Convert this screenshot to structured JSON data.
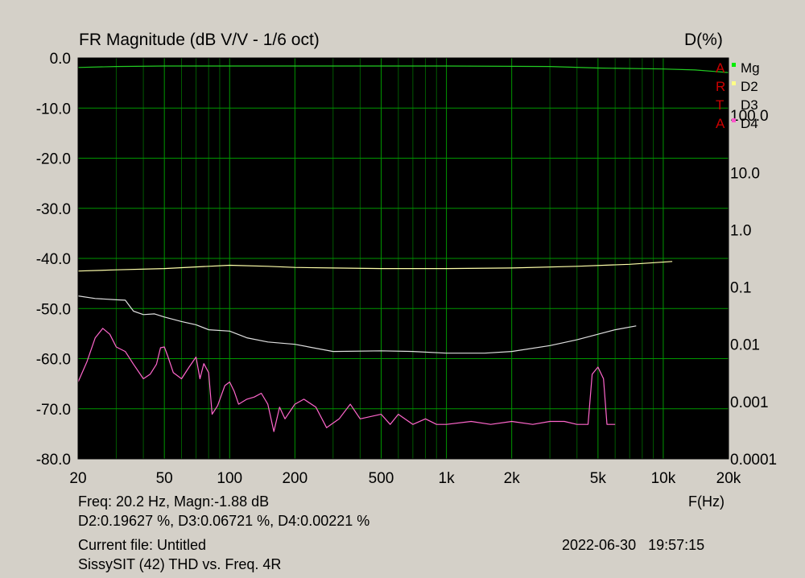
{
  "header": {
    "title": "FR Magnitude (dB V/V - 1/6 oct)",
    "right_axis_title": "D(%)"
  },
  "watermark": [
    "A",
    "R",
    "T",
    "A"
  ],
  "footer": {
    "readout_line1": "Freq: 20.2 Hz, Magn:-1.88 dB",
    "readout_line2": "D2:0.19627 %, D3:0.06721 %, D4:0.00221 %",
    "xaxis_unit": "F(Hz)",
    "current_file": "Current file: Untitled",
    "timestamp": "2022-06-30   19:57:15",
    "description": "SissySIT (42) THD vs. Freq. 4R"
  },
  "chart_data": {
    "type": "line",
    "x_scale": "log",
    "xlim": [
      20,
      20000
    ],
    "ylim_left": [
      -80,
      0
    ],
    "ylim_right_log": [
      0.0001,
      1000
    ],
    "grid": true,
    "legend_placement": "top-right",
    "x_ticks": [
      {
        "v": 20,
        "label": "20"
      },
      {
        "v": 50,
        "label": "50"
      },
      {
        "v": 100,
        "label": "100"
      },
      {
        "v": 200,
        "label": "200"
      },
      {
        "v": 500,
        "label": "500"
      },
      {
        "v": 1000,
        "label": "1k"
      },
      {
        "v": 2000,
        "label": "2k"
      },
      {
        "v": 5000,
        "label": "5k"
      },
      {
        "v": 10000,
        "label": "10k"
      },
      {
        "v": 20000,
        "label": "20k"
      }
    ],
    "y_ticks_left": [
      "0.0",
      "-10.0",
      "-20.0",
      "-30.0",
      "-40.0",
      "-50.0",
      "-60.0",
      "-70.0",
      "-80.0"
    ],
    "y_ticks_right": [
      {
        "v": 100,
        "label": "100.0"
      },
      {
        "v": 10,
        "label": "10.0"
      },
      {
        "v": 1,
        "label": "1.0"
      },
      {
        "v": 0.1,
        "label": "0.1"
      },
      {
        "v": 0.01,
        "label": "0.01"
      },
      {
        "v": 0.001,
        "label": "0.001"
      },
      {
        "v": 0.0001,
        "label": "0.0001"
      }
    ],
    "colors": {
      "plot_bg": "#000000",
      "grid_major": "#009600",
      "grid_minor": "#005a00",
      "Mg": "#22cc22",
      "D2": "#ffffaa",
      "D3": "#e0e0e0",
      "D4": "#ff66cc"
    },
    "series": [
      {
        "name": "Mg",
        "axis": "left",
        "color": "#22cc22",
        "legend_marker": "#00ee00",
        "points": [
          [
            20,
            -1.9
          ],
          [
            30,
            -1.7
          ],
          [
            50,
            -1.6
          ],
          [
            100,
            -1.6
          ],
          [
            500,
            -1.6
          ],
          [
            1000,
            -1.6
          ],
          [
            3000,
            -1.7
          ],
          [
            5000,
            -2.0
          ],
          [
            10000,
            -2.2
          ],
          [
            14000,
            -2.4
          ],
          [
            20000,
            -2.9
          ]
        ]
      },
      {
        "name": "D2",
        "axis": "right",
        "color": "#ffffaa",
        "legend_marker": "#ffff88",
        "points": [
          [
            20,
            0.19
          ],
          [
            30,
            0.2
          ],
          [
            50,
            0.21
          ],
          [
            80,
            0.23
          ],
          [
            100,
            0.24
          ],
          [
            150,
            0.23
          ],
          [
            200,
            0.22
          ],
          [
            300,
            0.215
          ],
          [
            500,
            0.21
          ],
          [
            1000,
            0.21
          ],
          [
            2000,
            0.215
          ],
          [
            4000,
            0.23
          ],
          [
            7000,
            0.25
          ],
          [
            11000,
            0.28
          ]
        ]
      },
      {
        "name": "D3",
        "axis": "right",
        "color": "#e0e0e0",
        "legend_marker": "",
        "points": [
          [
            20,
            0.07
          ],
          [
            24,
            0.063
          ],
          [
            30,
            0.06
          ],
          [
            33,
            0.059
          ],
          [
            36,
            0.038
          ],
          [
            40,
            0.033
          ],
          [
            45,
            0.034
          ],
          [
            50,
            0.03
          ],
          [
            60,
            0.025
          ],
          [
            70,
            0.022
          ],
          [
            80,
            0.018
          ],
          [
            100,
            0.017
          ],
          [
            120,
            0.013
          ],
          [
            150,
            0.011
          ],
          [
            200,
            0.01
          ],
          [
            300,
            0.0075
          ],
          [
            500,
            0.0077
          ],
          [
            700,
            0.0075
          ],
          [
            1000,
            0.007
          ],
          [
            1500,
            0.007
          ],
          [
            2000,
            0.0075
          ],
          [
            3000,
            0.0095
          ],
          [
            4000,
            0.012
          ],
          [
            5000,
            0.015
          ],
          [
            6000,
            0.018
          ],
          [
            7500,
            0.021
          ]
        ]
      },
      {
        "name": "D4",
        "axis": "right",
        "color": "#ff66cc",
        "legend_marker": "#ff55cc",
        "points": [
          [
            20,
            0.0022
          ],
          [
            22,
            0.005
          ],
          [
            24,
            0.013
          ],
          [
            26,
            0.019
          ],
          [
            28,
            0.015
          ],
          [
            30,
            0.009
          ],
          [
            33,
            0.0075
          ],
          [
            36,
            0.0045
          ],
          [
            40,
            0.0025
          ],
          [
            43,
            0.003
          ],
          [
            46,
            0.0045
          ],
          [
            48,
            0.0087
          ],
          [
            50,
            0.009
          ],
          [
            52,
            0.006
          ],
          [
            55,
            0.0032
          ],
          [
            60,
            0.0025
          ],
          [
            65,
            0.004
          ],
          [
            70,
            0.006
          ],
          [
            73,
            0.0025
          ],
          [
            76,
            0.0046
          ],
          [
            80,
            0.0032
          ],
          [
            83,
            0.0006
          ],
          [
            88,
            0.00085
          ],
          [
            95,
            0.0019
          ],
          [
            100,
            0.0022
          ],
          [
            105,
            0.0015
          ],
          [
            110,
            0.0009
          ],
          [
            120,
            0.0011
          ],
          [
            130,
            0.0012
          ],
          [
            140,
            0.0014
          ],
          [
            150,
            0.0009
          ],
          [
            160,
            0.0003
          ],
          [
            170,
            0.0008
          ],
          [
            180,
            0.0005
          ],
          [
            200,
            0.0009
          ],
          [
            220,
            0.0011
          ],
          [
            250,
            0.0008
          ],
          [
            280,
            0.00035
          ],
          [
            320,
            0.0005
          ],
          [
            360,
            0.0009
          ],
          [
            400,
            0.0005
          ],
          [
            500,
            0.0006
          ],
          [
            550,
            0.0004
          ],
          [
            600,
            0.0006
          ],
          [
            700,
            0.0004
          ],
          [
            800,
            0.0005
          ],
          [
            900,
            0.0004
          ],
          [
            1000,
            0.0004
          ],
          [
            1300,
            0.00045
          ],
          [
            1600,
            0.0004
          ],
          [
            2000,
            0.00045
          ],
          [
            2500,
            0.0004
          ],
          [
            3000,
            0.00045
          ],
          [
            3500,
            0.00045
          ],
          [
            4000,
            0.0004
          ],
          [
            4500,
            0.0004
          ],
          [
            4700,
            0.003
          ],
          [
            5000,
            0.004
          ],
          [
            5300,
            0.0025
          ],
          [
            5500,
            0.0004
          ],
          [
            6000,
            0.0004
          ]
        ]
      }
    ]
  }
}
